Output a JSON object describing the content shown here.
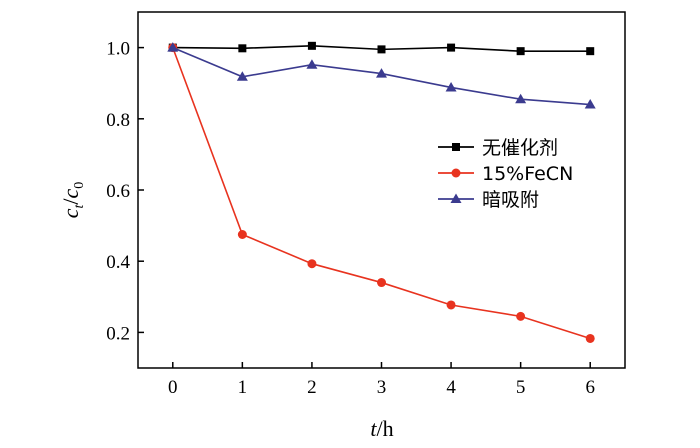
{
  "chart_data": {
    "type": "line",
    "x": [
      0,
      1,
      2,
      3,
      4,
      5,
      6
    ],
    "xlim": [
      -0.5,
      6.5
    ],
    "ylim": [
      0.1,
      1.1
    ],
    "xticks": [
      0,
      1,
      2,
      3,
      4,
      5,
      6
    ],
    "xtick_labels": [
      "0",
      "1",
      "2",
      "3",
      "4",
      "5",
      "6"
    ],
    "yticks": [
      0.2,
      0.4,
      0.6,
      0.8,
      1.0
    ],
    "ytick_labels": [
      "0.2",
      "0.4",
      "0.6",
      "0.8",
      "1.0"
    ],
    "xlabel": {
      "var": "t",
      "unit": "/h"
    },
    "ylabel": {
      "num": "c",
      "num_sub": "t",
      "den": "c",
      "den_sub": "0"
    },
    "grid": false,
    "legend_position": "right-middle",
    "series": [
      {
        "name": "无催化剂",
        "color": "#000000",
        "marker": "square",
        "values": [
          1.0,
          0.998,
          1.005,
          0.995,
          1.0,
          0.99,
          0.99
        ]
      },
      {
        "name": "15%FeCN",
        "color": "#e8331f",
        "marker": "circle",
        "values": [
          1.0,
          0.475,
          0.393,
          0.34,
          0.277,
          0.245,
          0.183
        ]
      },
      {
        "name": "暗吸附",
        "color": "#3b3b8f",
        "marker": "triangle",
        "values": [
          1.0,
          0.918,
          0.952,
          0.927,
          0.888,
          0.855,
          0.84
        ]
      }
    ]
  }
}
